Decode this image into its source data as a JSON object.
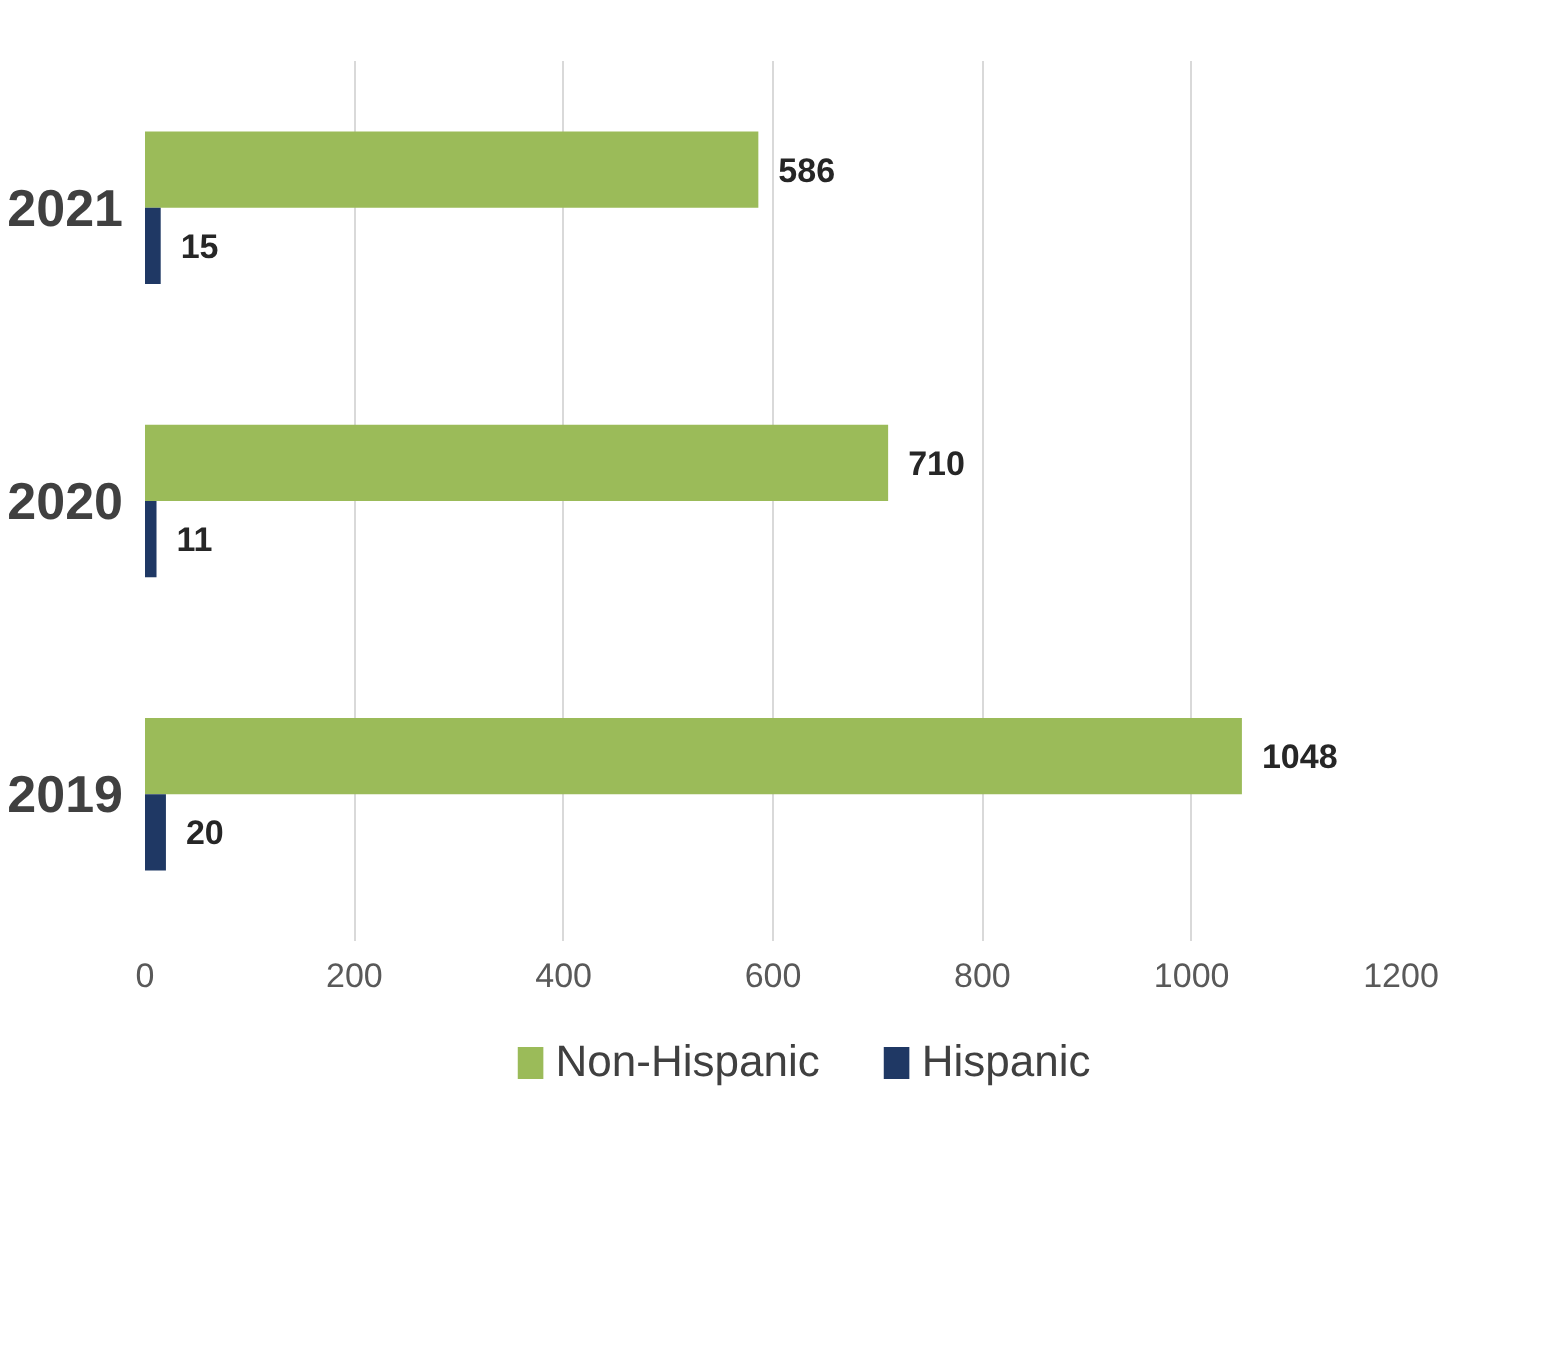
{
  "chart_data": {
    "type": "bar",
    "orientation": "horizontal",
    "categories": [
      "2021",
      "2020",
      "2019"
    ],
    "series": [
      {
        "name": "Non-Hispanic",
        "color": "#9bbb59",
        "values": [
          586,
          710,
          1048
        ]
      },
      {
        "name": "Hispanic",
        "color": "#1f3864",
        "values": [
          15,
          11,
          20
        ]
      }
    ],
    "xlim": [
      0,
      1200
    ],
    "xticks": [
      0,
      200,
      400,
      600,
      800,
      1000,
      1200
    ],
    "grid": "x",
    "legend": "bottom",
    "data_labels": true
  }
}
